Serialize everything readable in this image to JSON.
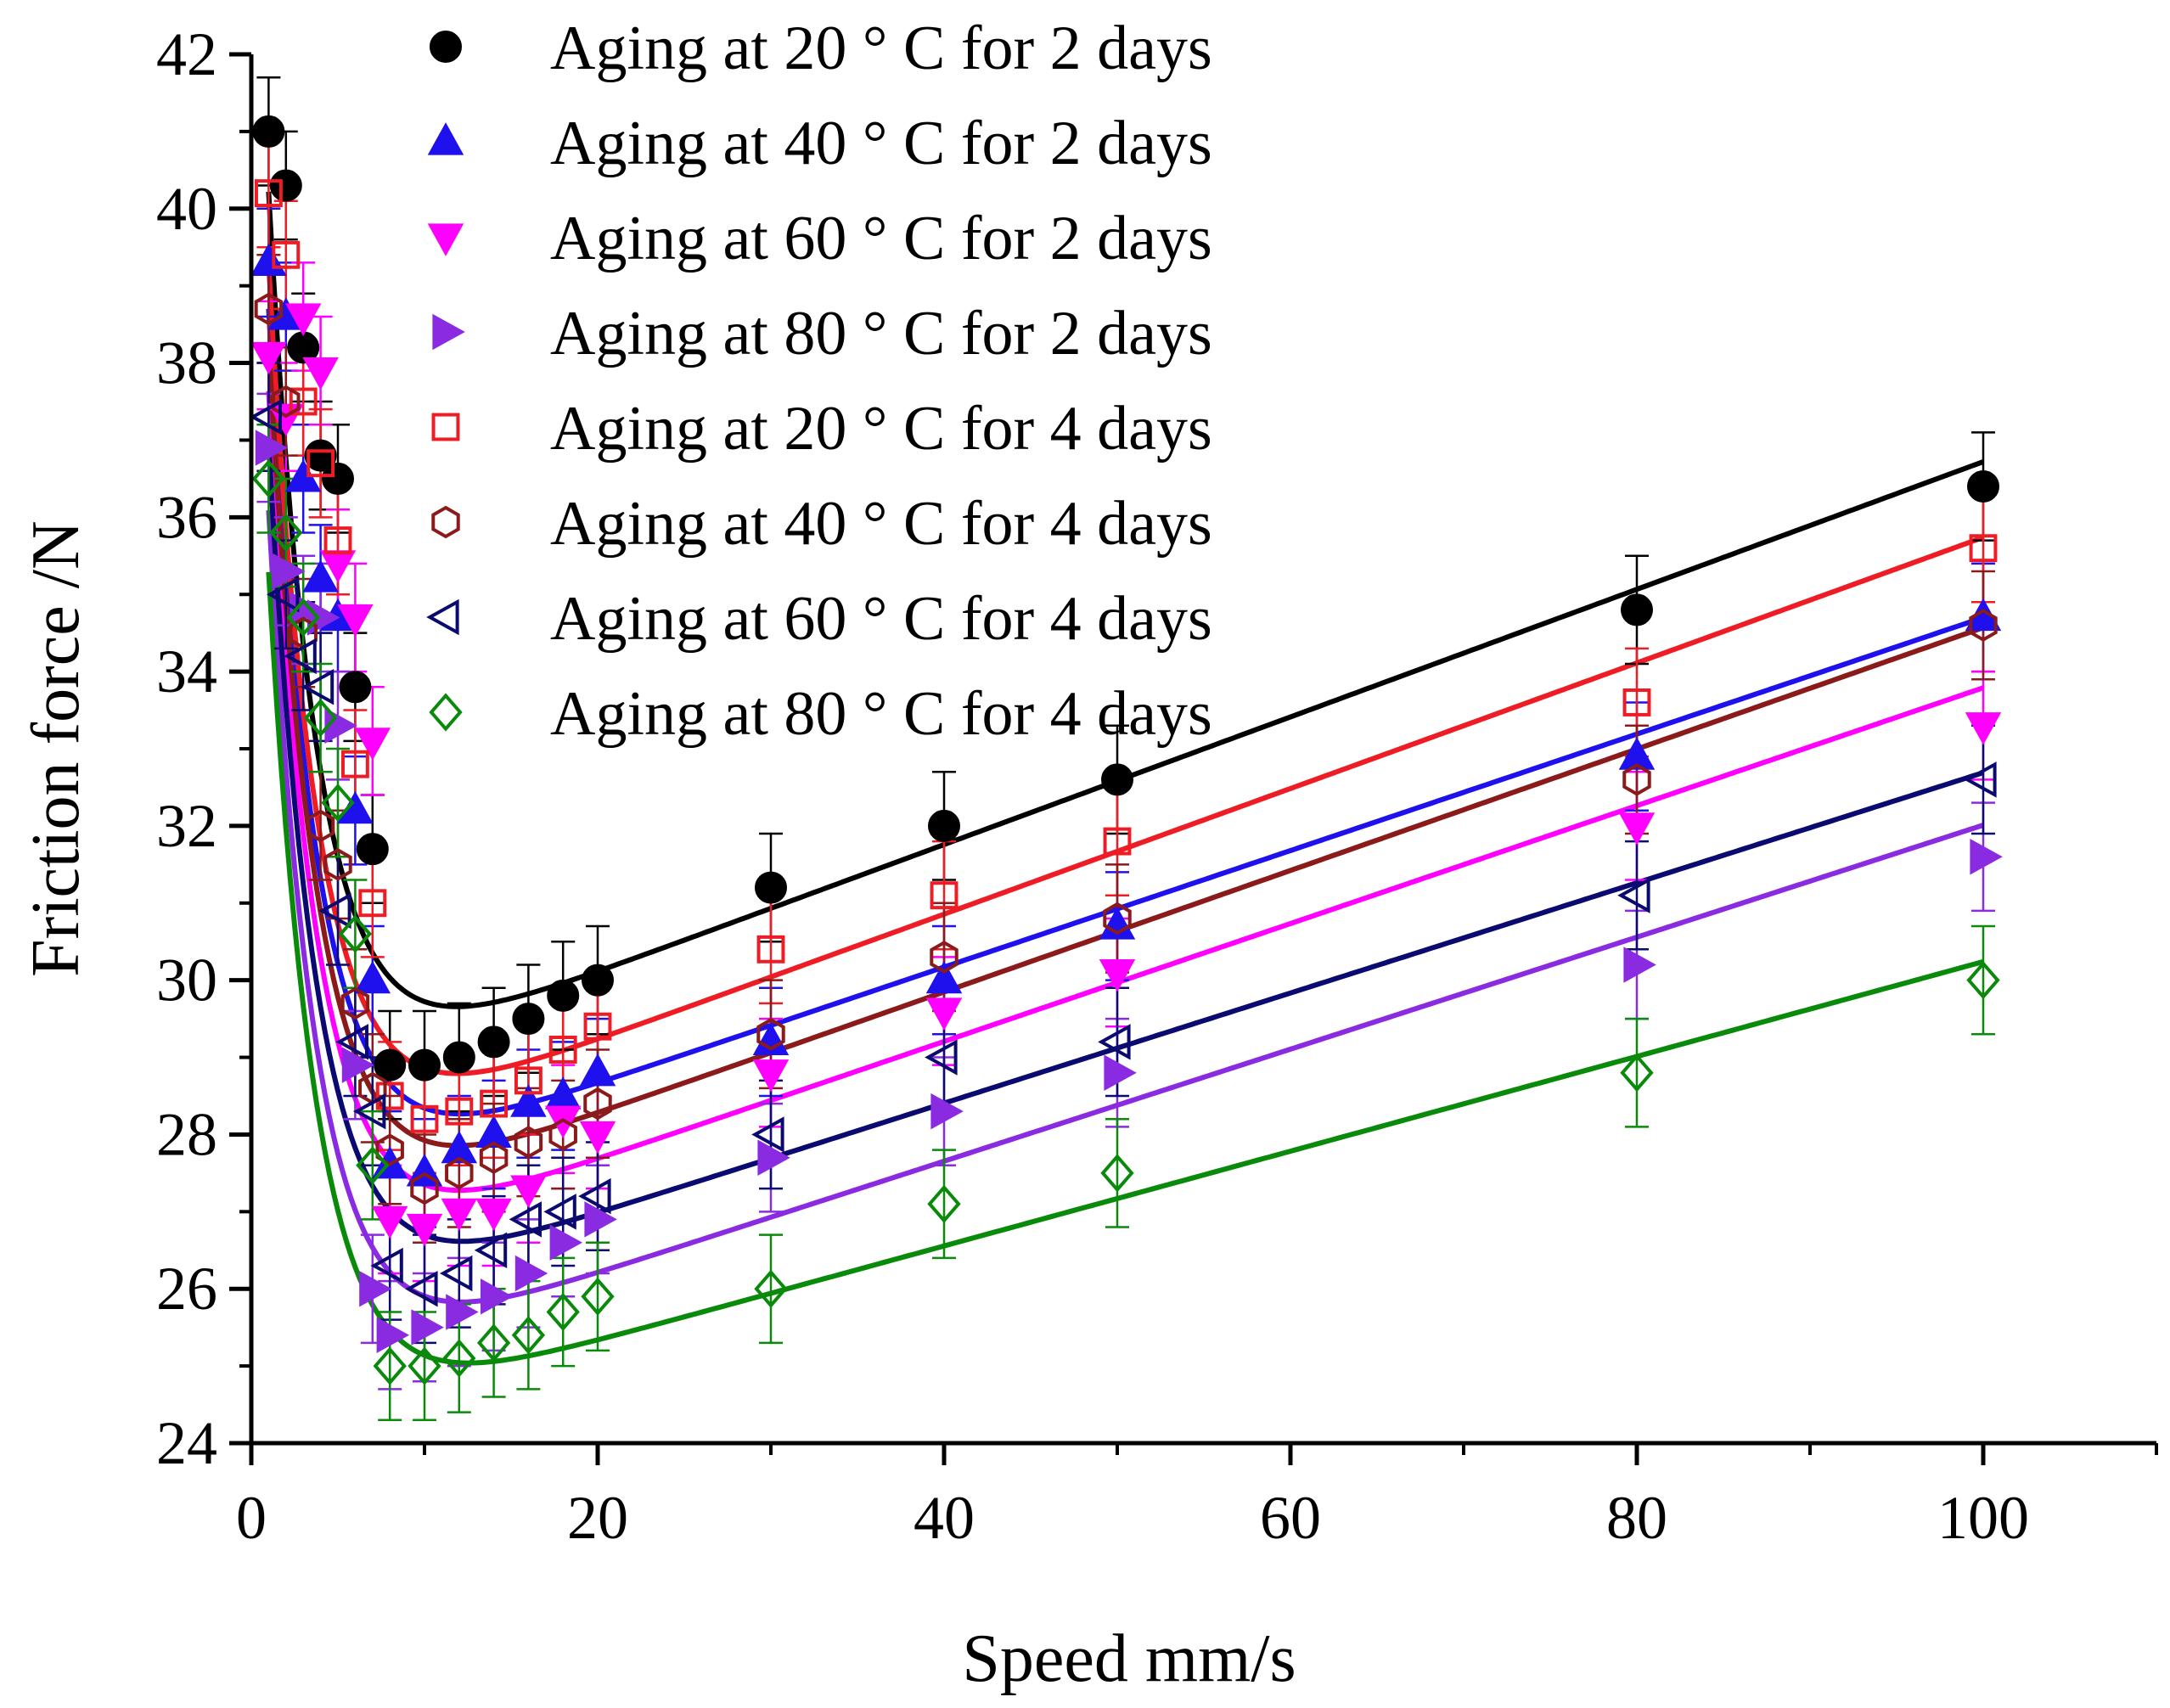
{
  "chart_data": {
    "type": "scatter",
    "title": "",
    "xlabel": "Speed mm/s",
    "ylabel": "Friction force /N",
    "xlim": [
      0,
      110
    ],
    "ylim": [
      24,
      42
    ],
    "x_ticks": [
      0,
      20,
      40,
      60,
      80,
      100
    ],
    "y_ticks": [
      24,
      26,
      28,
      30,
      32,
      34,
      36,
      38,
      40,
      42
    ],
    "x_tick_labels": [
      "0",
      "20",
      "40",
      "60",
      "80",
      "100"
    ],
    "y_tick_labels": [
      "24",
      "26",
      "28",
      "30",
      "32",
      "34",
      "36",
      "38",
      "40",
      "42"
    ],
    "legend_position": "top-center",
    "x": [
      1,
      2,
      3,
      4,
      5,
      6,
      7,
      8,
      10,
      12,
      14,
      16,
      18,
      20,
      30,
      40,
      50,
      80,
      100
    ],
    "series": [
      {
        "name": "Aging at 20 ° C for 2 days",
        "color": "#000000",
        "marker": "circle-filled",
        "values": [
          41.0,
          40.3,
          38.2,
          36.8,
          36.5,
          33.8,
          31.7,
          28.9,
          28.9,
          29.0,
          29.2,
          29.5,
          29.8,
          30.0,
          31.2,
          32.0,
          32.6,
          34.8,
          36.4
        ],
        "fit": {
          "a": 16.8,
          "b": 0.165,
          "y0": 28.45,
          "m": 0.0827
        }
      },
      {
        "name": "Aging at 40 ° C for 2 days",
        "color": "#1f10ee",
        "marker": "triangle-up-filled",
        "values": [
          39.3,
          38.6,
          36.5,
          35.2,
          34.7,
          32.2,
          30.0,
          27.6,
          27.5,
          27.8,
          28.0,
          28.4,
          28.5,
          28.8,
          29.2,
          30.0,
          30.7,
          32.9,
          34.7
        ],
        "fit": {
          "a": 16.5,
          "b": 0.165,
          "y0": 27.15,
          "m": 0.0755
        }
      },
      {
        "name": "Aging at 60 ° C for 2 days",
        "color": "#ff00ff",
        "marker": "triangle-down-filled",
        "values": [
          38.1,
          37.3,
          38.6,
          37.9,
          35.4,
          34.7,
          33.1,
          26.9,
          26.8,
          27.0,
          27.0,
          27.3,
          28.2,
          28.0,
          28.8,
          29.6,
          30.1,
          32.0,
          33.3
        ],
        "fit": {
          "a": 16.4,
          "b": 0.165,
          "y0": 26.15,
          "m": 0.0764
        }
      },
      {
        "name": "Aging at 80 ° C for 2 days",
        "color": "#8a2be2",
        "marker": "triangle-right-filled",
        "values": [
          36.9,
          35.3,
          34.8,
          34.7,
          33.3,
          28.9,
          26.0,
          25.4,
          25.5,
          25.7,
          25.9,
          26.2,
          26.6,
          26.9,
          27.7,
          28.3,
          28.8,
          30.2,
          31.6
        ],
        "fit": {
          "a": 16.2,
          "b": 0.165,
          "y0": 24.75,
          "m": 0.0726
        }
      },
      {
        "name": "Aging at 20 ° C for 4 days",
        "color": "#ee1c24",
        "marker": "square-open",
        "values": [
          40.2,
          39.4,
          37.5,
          36.7,
          35.7,
          32.8,
          31.0,
          28.5,
          28.2,
          28.3,
          28.4,
          28.7,
          29.1,
          29.4,
          30.4,
          31.1,
          31.8,
          33.6,
          35.6
        ],
        "fit": {
          "a": 16.7,
          "b": 0.165,
          "y0": 27.6,
          "m": 0.0814
        }
      },
      {
        "name": "Aging at 40 ° C for 4 days",
        "color": "#8b1a1a",
        "marker": "hexagon-open",
        "values": [
          38.7,
          37.5,
          34.5,
          32.0,
          31.5,
          29.7,
          28.6,
          27.8,
          27.3,
          27.5,
          27.7,
          27.9,
          28.0,
          28.4,
          29.3,
          30.3,
          30.8,
          32.6,
          34.6
        ],
        "fit": {
          "a": 16.5,
          "b": 0.165,
          "y0": 26.7,
          "m": 0.0787
        }
      },
      {
        "name": "Aging at 60 ° C for 4 days",
        "color": "#0a0a70",
        "marker": "triangle-left-open",
        "values": [
          37.3,
          35.0,
          34.2,
          33.8,
          30.9,
          29.2,
          28.3,
          26.3,
          26.0,
          26.2,
          26.5,
          26.9,
          27.0,
          27.2,
          28.0,
          29.0,
          29.2,
          31.1,
          32.6
        ],
        "fit": {
          "a": 16.3,
          "b": 0.165,
          "y0": 25.55,
          "m": 0.0714
        }
      },
      {
        "name": "Aging at 80 ° C for 4 days",
        "color": "#0a8a0a",
        "marker": "diamond-open",
        "values": [
          36.5,
          35.8,
          34.7,
          33.4,
          32.3,
          30.6,
          27.6,
          25.0,
          25.0,
          25.1,
          25.3,
          25.4,
          25.7,
          25.9,
          26.0,
          27.1,
          27.5,
          28.8,
          30.0
        ],
        "fit": {
          "a": 16.0,
          "b": 0.165,
          "y0": 24.1,
          "m": 0.0614
        }
      }
    ]
  }
}
